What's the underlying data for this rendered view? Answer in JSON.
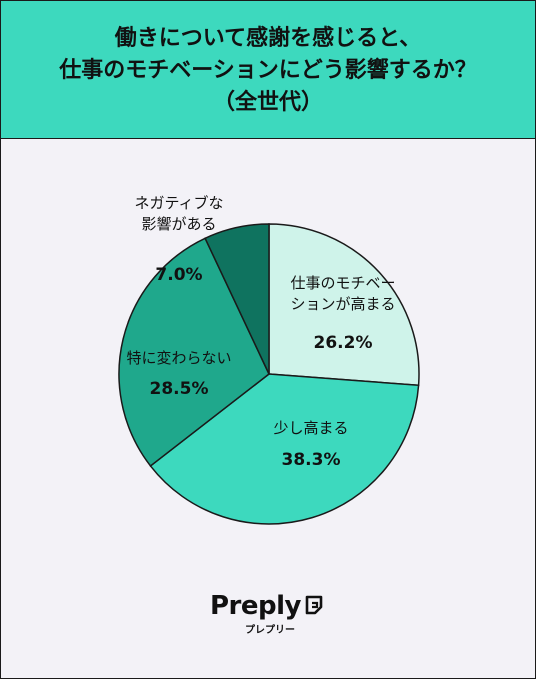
{
  "title_lines": [
    "働きについて感謝を感じると、",
    "仕事のモチベーションにどう影響するか？",
    "（全世代）"
  ],
  "chart_data": {
    "type": "pie",
    "start": "12 o'clock, clockwise",
    "slices": [
      {
        "label_lines": [
          "仕事のモチベー",
          "ションが高まる"
        ],
        "value": 26.2,
        "value_label": "26.2%",
        "color": "#cff3ea"
      },
      {
        "label_lines": [
          "少し高まる"
        ],
        "value": 38.3,
        "value_label": "38.3%",
        "color": "#3dd9be"
      },
      {
        "label_lines": [
          "特に変わらない"
        ],
        "value": 28.5,
        "value_label": "28.5%",
        "color": "#1fa88c"
      },
      {
        "label_lines": [
          "ネガティブな",
          "影響がある"
        ],
        "value": 7.0,
        "value_label": "7.0%",
        "color": "#0f735f"
      }
    ]
  },
  "brand": {
    "name": "Preply",
    "sub": "プレプリー",
    "icon": "preply-logo-icon"
  }
}
